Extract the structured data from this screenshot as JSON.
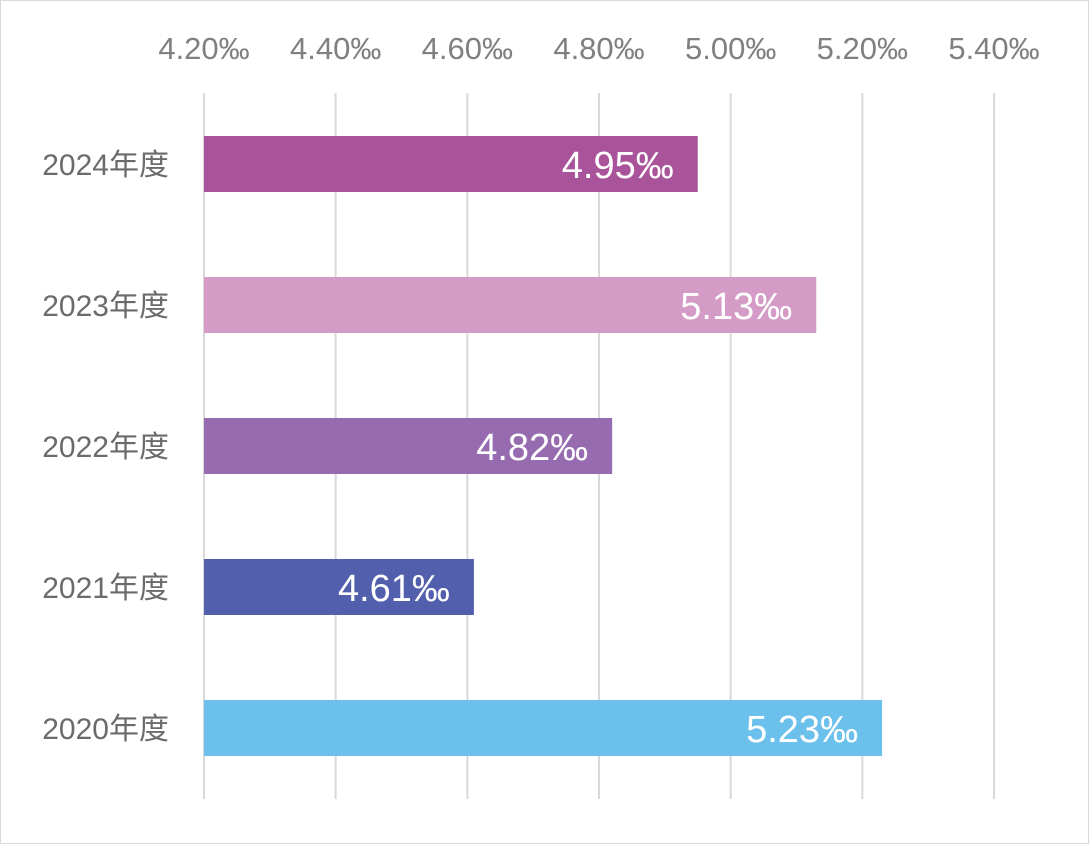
{
  "chart_data": {
    "type": "bar",
    "orientation": "horizontal",
    "categories": [
      "2024年度",
      "2023年度",
      "2022年度",
      "2021年度",
      "2020年度"
    ],
    "values": [
      4.95,
      5.13,
      4.82,
      4.61,
      5.23
    ],
    "data_labels": [
      "4.95‰",
      "5.13‰",
      "4.82‰",
      "4.61‰",
      "5.23‰"
    ],
    "unit": "‰",
    "xlim": [
      4.2,
      5.4
    ],
    "ticks": [
      4.2,
      4.4,
      4.6,
      4.8,
      5.0,
      5.2,
      5.4
    ],
    "tick_labels": [
      "4.20‰",
      "4.40‰",
      "4.60‰",
      "4.80‰",
      "5.00‰",
      "5.20‰",
      "5.40‰"
    ],
    "axis_position": "top",
    "grid": true,
    "legend": false,
    "colors": [
      "#A9539A",
      "#D39BC5",
      "#976BAF",
      "#525FAD",
      "#6BC1EB"
    ]
  }
}
